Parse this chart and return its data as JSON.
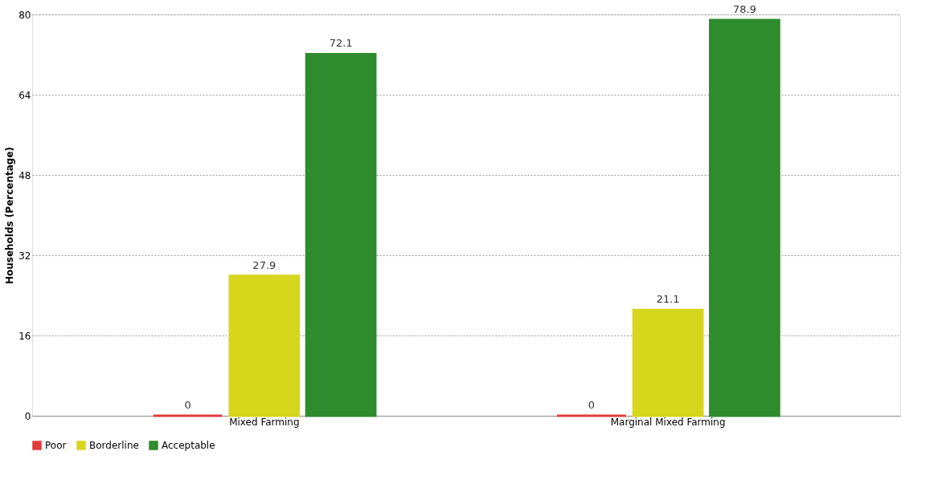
{
  "chart_data": {
    "type": "bar",
    "ylabel": "Households (Percentage)",
    "categories": [
      "Mixed Farming",
      "Marginal Mixed Farming"
    ],
    "series": [
      {
        "name": "Poor",
        "color": "#e03c3c",
        "values": [
          0,
          0
        ]
      },
      {
        "name": "Borderline",
        "color": "#d6d61c",
        "values": [
          27.9,
          21.1
        ]
      },
      {
        "name": "Acceptable",
        "color": "#2e8b2e",
        "values": [
          72.1,
          78.9
        ]
      }
    ],
    "ylim": [
      0,
      80
    ],
    "yticks": [
      0,
      16,
      32,
      48,
      64,
      80
    ],
    "grid": "y",
    "legend": "bottom",
    "data_labels": true
  }
}
